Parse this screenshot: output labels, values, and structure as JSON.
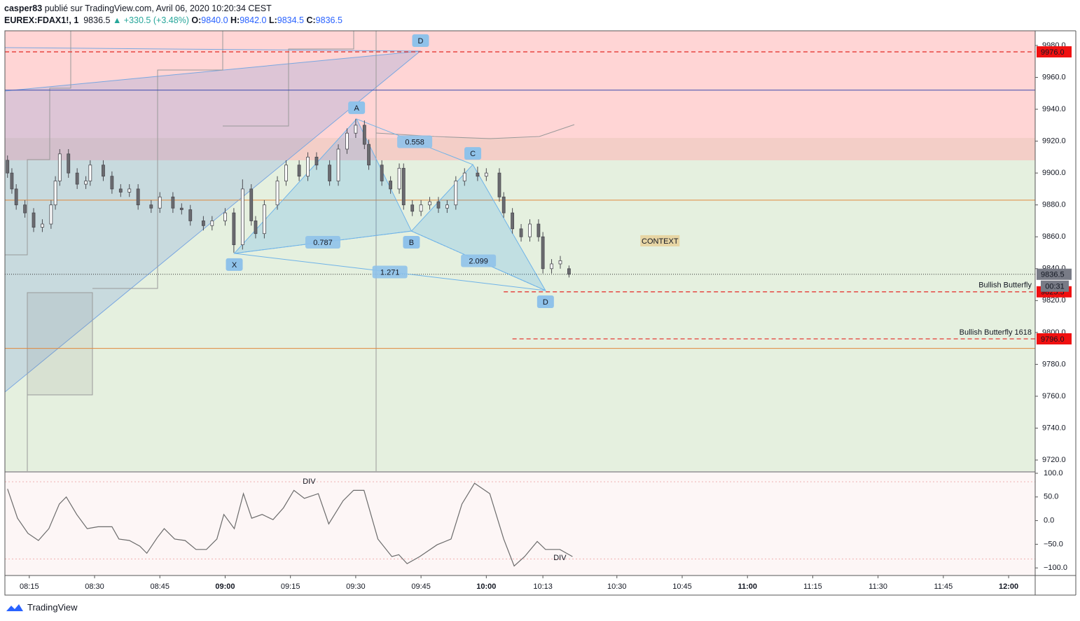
{
  "chart_data": {
    "type": "candlestick",
    "header": {
      "user": "casper83",
      "published": " publié sur TradingView.com, Avril 06, 2020 10:20:34 CEST",
      "symbol": "EUREX:FDAX1!, 1",
      "last": "9836.5",
      "change": "▲ +330.5 (+3.48%)",
      "ohlc": [
        {
          "key": "O:",
          "value": "9840.0"
        },
        {
          "key": "H:",
          "value": "9842.0"
        },
        {
          "key": "L:",
          "value": "9834.5"
        },
        {
          "key": "C:",
          "value": "9836.5"
        }
      ]
    },
    "brand": "TradingView",
    "xlim": [
      489.4,
      726.1
    ],
    "xticks": [
      {
        "value": 495,
        "label": "08:15"
      },
      {
        "value": 510,
        "label": "08:30"
      },
      {
        "value": 525,
        "label": "08:45"
      },
      {
        "value": 540,
        "label": "09:00"
      },
      {
        "value": 555,
        "label": "09:15"
      },
      {
        "value": 570,
        "label": "09:30"
      },
      {
        "value": 585,
        "label": "09:45"
      },
      {
        "value": 600,
        "label": "10:00"
      },
      {
        "value": 613,
        "label": "10:13"
      },
      {
        "value": 630,
        "label": "10:30"
      },
      {
        "value": 645,
        "label": "10:45"
      },
      {
        "value": 660,
        "label": "11:00"
      },
      {
        "value": 675,
        "label": "11:15"
      },
      {
        "value": 690,
        "label": "11:30"
      },
      {
        "value": 705,
        "label": "11:45"
      },
      {
        "value": 720,
        "label": "12:00"
      }
    ],
    "ylim": [
      9713,
      9989.2
    ],
    "yticks": [
      {
        "value": 9720,
        "label": "9720.0"
      },
      {
        "value": 9740,
        "label": "9740.0"
      },
      {
        "value": 9760,
        "label": "9760.0"
      },
      {
        "value": 9780,
        "label": "9780.0"
      },
      {
        "value": 9800,
        "label": "9800.0"
      },
      {
        "value": 9820,
        "label": "9820.0"
      },
      {
        "value": 9840,
        "label": "9840.0"
      },
      {
        "value": 9860,
        "label": "9860.0"
      },
      {
        "value": 9880,
        "label": "9880.0"
      },
      {
        "value": 9900,
        "label": "9900.0"
      },
      {
        "value": 9920,
        "label": "9920.0"
      },
      {
        "value": 9940,
        "label": "9940.0"
      },
      {
        "value": 9960,
        "label": "9960.0"
      },
      {
        "value": 9980,
        "label": "9980.0"
      }
    ],
    "grid": false,
    "up_color": "#ffffff",
    "down_color": "#6b6b70",
    "wick_color": "#4a4a50",
    "x": [
      490,
      491,
      492,
      494,
      496,
      498,
      500,
      501,
      502,
      504,
      506,
      508,
      509,
      512,
      514,
      516,
      518,
      520,
      523,
      525,
      528,
      530,
      532,
      535,
      537,
      540,
      542,
      544,
      546,
      547,
      549,
      552,
      554,
      557,
      559,
      561,
      564,
      566,
      568,
      570,
      572,
      573,
      576,
      578,
      580,
      581,
      583,
      585,
      587,
      589,
      591,
      593,
      595,
      598,
      600,
      603,
      604,
      606,
      608,
      610,
      612,
      613,
      615,
      617,
      619
    ],
    "open": [
      9908,
      9900,
      9890,
      9880,
      9875,
      9866,
      9868,
      9880,
      9895,
      9912,
      9900,
      9893,
      9895,
      9905,
      9898,
      9890,
      9888,
      9890,
      9880,
      9878,
      9885,
      9878,
      9877,
      9870,
      9867,
      9870,
      9875,
      9855,
      9890,
      9870,
      9862,
      9880,
      9895,
      9905,
      9898,
      9910,
      9905,
      9895,
      9915,
      9925,
      9930,
      9918,
      9905,
      9895,
      9890,
      9903,
      9880,
      9876,
      9880,
      9882,
      9878,
      9880,
      9895,
      9900,
      9898,
      9900,
      9885,
      9875,
      9865,
      9860,
      9868,
      9860,
      9840,
      9843,
      9840
    ],
    "high": [
      9911,
      9903,
      9893,
      9883,
      9878,
      9871,
      9883,
      9898,
      9915,
      9915,
      9903,
      9898,
      9908,
      9908,
      9901,
      9893,
      9893,
      9893,
      9883,
      9888,
      9888,
      9881,
      9880,
      9873,
      9873,
      9878,
      9878,
      9896,
      9893,
      9873,
      9883,
      9898,
      9908,
      9908,
      9913,
      9913,
      9908,
      9918,
      9928,
      9934,
      9933,
      9921,
      9908,
      9898,
      9906,
      9906,
      9883,
      9883,
      9885,
      9885,
      9883,
      9898,
      9903,
      9904,
      9903,
      9903,
      9888,
      9878,
      9868,
      9871,
      9871,
      9863,
      9846,
      9848,
      9842
    ],
    "low": [
      9897,
      9887,
      9877,
      9872,
      9863,
      9863,
      9865,
      9877,
      9892,
      9897,
      9890,
      9890,
      9892,
      9895,
      9887,
      9885,
      9885,
      9877,
      9875,
      9875,
      9875,
      9874,
      9867,
      9864,
      9864,
      9867,
      9850,
      9852,
      9867,
      9859,
      9859,
      9877,
      9892,
      9895,
      9895,
      9902,
      9892,
      9892,
      9912,
      9922,
      9915,
      9902,
      9892,
      9887,
      9887,
      9877,
      9873,
      9873,
      9877,
      9875,
      9875,
      9877,
      9892,
      9895,
      9895,
      9882,
      9872,
      9862,
      9857,
      9857,
      9857,
      9837,
      9837,
      9840,
      9834.5
    ],
    "close": [
      9900,
      9890,
      9880,
      9875,
      9866,
      9868,
      9880,
      9895,
      9912,
      9900,
      9893,
      9895,
      9905,
      9898,
      9890,
      9888,
      9890,
      9880,
      9878,
      9885,
      9878,
      9877,
      9870,
      9867,
      9870,
      9875,
      9855,
      9890,
      9870,
      9862,
      9880,
      9895,
      9905,
      9898,
      9910,
      9905,
      9895,
      9915,
      9925,
      9930,
      9918,
      9905,
      9895,
      9890,
      9903,
      9880,
      9876,
      9880,
      9882,
      9878,
      9880,
      9895,
      9900,
      9898,
      9900,
      9885,
      9875,
      9865,
      9860,
      9868,
      9860,
      9840,
      9843,
      9845,
      9836.5
    ],
    "zones": [
      {
        "from": 9713,
        "to": 9922,
        "color": "#cfe3c4"
      },
      {
        "from": 9908,
        "to": 9989.2,
        "color": "#ffb3b3"
      }
    ],
    "lines": [
      {
        "value": 9976,
        "color": "#e53935",
        "style": "dashed"
      },
      {
        "value": 9952,
        "color": "#3949ab",
        "style": "solid"
      },
      {
        "value": 9883,
        "color": "#e0883c",
        "style": "solid"
      },
      {
        "value": 9790,
        "color": "#e0883c",
        "style": "solid"
      },
      {
        "value": 9836.5,
        "color": "#333333",
        "style": "dotted"
      },
      {
        "value": 9825.5,
        "color": "#e53935",
        "style": "dashed",
        "from": 604,
        "label": "Bullish Butterfly"
      },
      {
        "value": 9796,
        "color": "#e53935",
        "style": "dashed",
        "from": 606,
        "label": "Bullish Butterfly 1618"
      }
    ],
    "price_labels": [
      {
        "value": 9976,
        "label": "9976.0",
        "color": "#f01010"
      },
      {
        "value": 9836.5,
        "label": "9836.5",
        "color": "#787b86"
      },
      {
        "value": 9825.5,
        "label": "9825.5",
        "color": "#f01010"
      },
      {
        "value": 9796,
        "label": "9796.0",
        "color": "#f01010"
      }
    ],
    "countdown": "00:31",
    "pattern": {
      "points": [
        {
          "label": "X",
          "x": 542.1,
          "y": 9849.6
        },
        {
          "label": "A",
          "x": 570.2,
          "y": 9933.9
        },
        {
          "label": "B",
          "x": 582.8,
          "y": 9863.6
        },
        {
          "label": "C",
          "x": 596.9,
          "y": 9905.3
        },
        {
          "label": "D",
          "x": 613.6,
          "y": 9826.3
        }
      ],
      "ratios": [
        0.787,
        0.558,
        2.099,
        1.271
      ],
      "top_point": {
        "label": "D",
        "x": 584.9,
        "y": 9976
      }
    },
    "annotation": {
      "text": "CONTEXT",
      "x": 639.9,
      "y": 9857.5
    },
    "oscillator": {
      "ylim": [
        -116,
        101.5
      ],
      "yticks": [
        {
          "value": 100,
          "label": "100.0"
        },
        {
          "value": 50,
          "label": "50.0"
        },
        {
          "value": 0,
          "label": "0.0"
        },
        {
          "value": -50,
          "label": "−50.0"
        },
        {
          "value": -100,
          "label": "−100.0"
        }
      ],
      "levels": [
        82,
        -81
      ],
      "x": [
        490,
        492.3,
        494.7,
        497.1,
        499.5,
        501.9,
        503.5,
        505.9,
        508.3,
        510.8,
        514,
        515.6,
        518,
        520.4,
        522,
        524.4,
        526,
        528.4,
        530.8,
        533.3,
        535.7,
        538.1,
        539.7,
        542.1,
        544.2,
        546.1,
        548.5,
        551,
        553.4,
        555.8,
        558.2,
        561.4,
        563.8,
        567.1,
        569.5,
        571.9,
        575.1,
        578.3,
        579.9,
        581.8,
        584.7,
        588.7,
        591.9,
        594.4,
        597.3,
        600.8,
        604,
        606.4,
        608.8,
        611.7,
        613.6,
        616.9,
        619.8
      ],
      "values": [
        67,
        5,
        -27,
        -42,
        -17,
        35,
        50,
        13,
        -17,
        -13,
        -13,
        -39,
        -42,
        -54,
        -69,
        -36,
        -17,
        -39,
        -42,
        -61,
        -61,
        -39,
        13,
        -17,
        57,
        5,
        13,
        2,
        27,
        64,
        47,
        57,
        -7,
        42,
        64,
        64,
        -39,
        -76,
        -72,
        -91,
        -76,
        -51,
        -39,
        35,
        79,
        57,
        -39,
        -96,
        -76,
        -44,
        -61,
        -61,
        -76
      ],
      "divs": [
        {
          "text": "DIV",
          "x": 559.3,
          "y": 82,
          "color": "#f4a3a3"
        },
        {
          "text": "DIV",
          "x": 616.9,
          "y": -79,
          "color": "#a9c4ea"
        }
      ]
    }
  }
}
